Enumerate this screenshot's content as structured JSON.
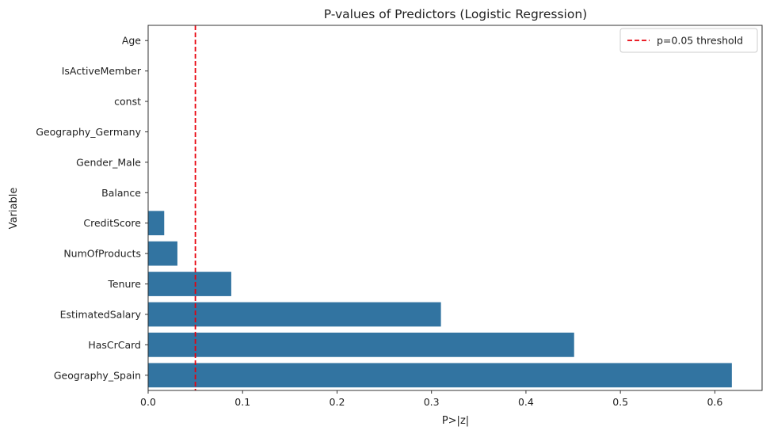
{
  "chart_data": {
    "type": "bar",
    "orientation": "horizontal",
    "title": "P-values of Predictors (Logistic Regression)",
    "xlabel": "P>|z|",
    "ylabel": "Variable",
    "categories": [
      "Age",
      "IsActiveMember",
      "const",
      "Geography_Germany",
      "Gender_Male",
      "Balance",
      "CreditScore",
      "NumOfProducts",
      "Tenure",
      "EstimatedSalary",
      "HasCrCard",
      "Geography_Spain"
    ],
    "values": [
      0.0,
      0.0,
      0.0,
      0.0,
      0.0,
      0.0001,
      0.017,
      0.031,
      0.088,
      0.31,
      0.451,
      0.618
    ],
    "xlim": [
      0,
      0.65
    ],
    "xticks": [
      "0.0",
      "0.1",
      "0.2",
      "0.3",
      "0.4",
      "0.5",
      "0.6"
    ],
    "xtick_values": [
      0,
      0.1,
      0.2,
      0.3,
      0.4,
      0.5,
      0.6
    ],
    "bar_color": "#3274a1",
    "threshold": {
      "value": 0.05,
      "label": "p=0.05 threshold",
      "color": "#e8000b",
      "style": "dashed"
    },
    "legend_position": "top-right",
    "grid": false
  }
}
